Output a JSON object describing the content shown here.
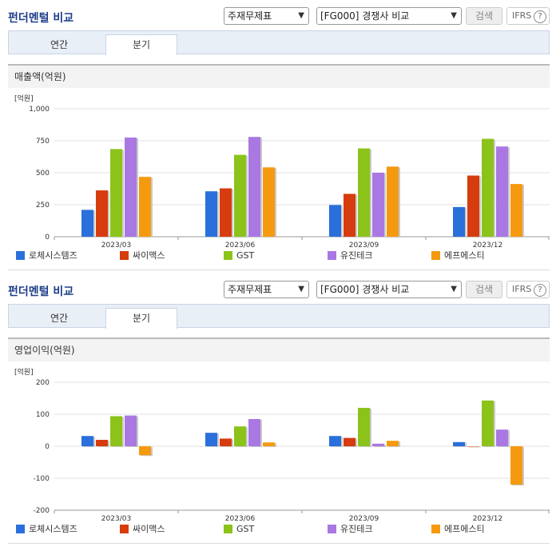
{
  "panels": [
    {
      "title": "펀더멘털 비교",
      "select1": "주재무제표",
      "select2": "[FG000] 경쟁사 비교",
      "search_label": "검색",
      "ifrs_label": "IFRS",
      "ifrs_help": "?",
      "tabs": [
        "연간",
        "분기"
      ],
      "active_tab": "분기",
      "section_title": "매출액(억원)",
      "chart_data": {
        "type": "bar",
        "unit_label": "[억원]",
        "categories": [
          "2023/03",
          "2023/06",
          "2023/09",
          "2023/12"
        ],
        "ylim": [
          0,
          1000
        ],
        "yticks": [
          "0",
          "250",
          "500",
          "750",
          "1,000"
        ],
        "series": [
          {
            "name": "로체시스템즈",
            "color": "#2a6fdb",
            "values": [
              210,
              355,
              248,
              232
            ]
          },
          {
            "name": "싸이맥스",
            "color": "#d63c0e",
            "values": [
              362,
              378,
              335,
              478
            ]
          },
          {
            "name": "GST",
            "color": "#8cc31b",
            "values": [
              685,
              640,
              690,
              765
            ]
          },
          {
            "name": "유진테크",
            "color": "#a978e3",
            "values": [
              775,
              780,
              500,
              705
            ]
          },
          {
            "name": "에프에스티",
            "color": "#f59a0f",
            "values": [
              468,
              542,
              548,
              412
            ]
          }
        ]
      }
    },
    {
      "title": "펀더멘털 비교",
      "select1": "주재무제표",
      "select2": "[FG000] 경쟁사 비교",
      "search_label": "검색",
      "ifrs_label": "IFRS",
      "ifrs_help": "?",
      "tabs": [
        "연간",
        "분기"
      ],
      "active_tab": "분기",
      "section_title": "영업이익(억원)",
      "chart_data": {
        "type": "bar",
        "unit_label": "[억원]",
        "categories": [
          "2023/03",
          "2023/06",
          "2023/09",
          "2023/12"
        ],
        "ylim": [
          -200,
          200
        ],
        "yticks": [
          "-200",
          "-100",
          "0",
          "100",
          "200"
        ],
        "series": [
          {
            "name": "로체시스템즈",
            "color": "#2a6fdb",
            "values": [
              32,
              42,
              32,
              13
            ]
          },
          {
            "name": "싸이맥스",
            "color": "#d63c0e",
            "values": [
              20,
              24,
              26,
              0
            ]
          },
          {
            "name": "GST",
            "color": "#8cc31b",
            "values": [
              94,
              62,
              120,
              143
            ]
          },
          {
            "name": "유진테크",
            "color": "#a978e3",
            "values": [
              96,
              85,
              8,
              52
            ]
          },
          {
            "name": "에프에스티",
            "color": "#f59a0f",
            "values": [
              -28,
              12,
              17,
              -120
            ]
          }
        ]
      }
    }
  ]
}
